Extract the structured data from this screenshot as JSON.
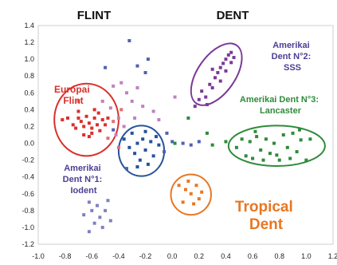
{
  "chart_data": {
    "type": "scatter",
    "headers": [
      "FLINT",
      "DENT"
    ],
    "xlim": [
      -1.0,
      1.2
    ],
    "ylim": [
      -1.2,
      1.4
    ],
    "xticks": [
      "-1.0",
      "-0.8",
      "-0.6",
      "-0.4",
      "-0.2",
      "0.0",
      "0.2",
      "0.4",
      "0.6",
      "0.8",
      "1.0",
      "1.2"
    ],
    "yticks": [
      "1.4",
      "1.2",
      "1.0",
      "0.8",
      "0.6",
      "0.4",
      "0.2",
      "0.0",
      "-0.2",
      "-0.4",
      "-0.6",
      "-0.8",
      "-1.0",
      "-1.2"
    ],
    "groups": [
      {
        "label": [
          "Európai",
          "Flint"
        ],
        "color": "#d9302b",
        "ellipse": {
          "cx": -0.64,
          "cy": 0.28,
          "rx": 0.24,
          "ry": 0.43
        },
        "points": [
          [
            -0.82,
            0.28
          ],
          [
            -0.78,
            0.3
          ],
          [
            -0.74,
            0.22
          ],
          [
            -0.72,
            0.18
          ],
          [
            -0.7,
            0.3
          ],
          [
            -0.68,
            0.26
          ],
          [
            -0.66,
            0.2
          ],
          [
            -0.64,
            0.32
          ],
          [
            -0.62,
            0.24
          ],
          [
            -0.6,
            0.18
          ],
          [
            -0.58,
            0.3
          ],
          [
            -0.56,
            0.22
          ],
          [
            -0.54,
            0.15
          ],
          [
            -0.52,
            0.28
          ],
          [
            -0.66,
            0.1
          ],
          [
            -0.62,
            0.08
          ],
          [
            -0.58,
            0.4
          ],
          [
            -0.55,
            0.36
          ],
          [
            -0.7,
            0.38
          ],
          [
            -0.5,
            0.22
          ],
          [
            -0.48,
            0.3
          ],
          [
            -0.6,
            0.12
          ]
        ]
      },
      {
        "label": [
          "Amerikai",
          "Dent N°2:",
          "SSS"
        ],
        "color": "#7b3a96",
        "ellipse": {
          "cx": 0.33,
          "cy": 0.82,
          "rx": 0.14,
          "ry": 0.42,
          "angle": 35
        },
        "points": [
          [
            0.17,
            0.44
          ],
          [
            0.2,
            0.52
          ],
          [
            0.22,
            0.62
          ],
          [
            0.25,
            0.55
          ],
          [
            0.28,
            0.7
          ],
          [
            0.3,
            0.66
          ],
          [
            0.32,
            0.78
          ],
          [
            0.34,
            0.84
          ],
          [
            0.36,
            0.9
          ],
          [
            0.38,
            0.95
          ],
          [
            0.4,
            1.0
          ],
          [
            0.42,
            1.05
          ],
          [
            0.44,
            1.08
          ],
          [
            0.46,
            1.02
          ],
          [
            0.36,
            0.74
          ],
          [
            0.3,
            0.88
          ],
          [
            0.44,
            0.96
          ],
          [
            0.26,
            0.46
          ],
          [
            0.4,
            0.86
          ]
        ]
      },
      {
        "label": [
          "Amerikai Dent N°3:",
          "Lancaster"
        ],
        "color": "#2e8b3a",
        "ellipse": {
          "cx": 0.78,
          "cy": -0.03,
          "rx": 0.36,
          "ry": 0.24
        },
        "points": [
          [
            0.48,
            -0.05
          ],
          [
            0.52,
            0.05
          ],
          [
            0.55,
            -0.15
          ],
          [
            0.58,
            0.02
          ],
          [
            0.6,
            -0.18
          ],
          [
            0.63,
            0.08
          ],
          [
            0.66,
            -0.08
          ],
          [
            0.7,
            0.05
          ],
          [
            0.73,
            -0.12
          ],
          [
            0.76,
            0.0
          ],
          [
            0.8,
            -0.2
          ],
          [
            0.83,
            0.1
          ],
          [
            0.86,
            -0.05
          ],
          [
            0.9,
            0.12
          ],
          [
            0.93,
            -0.1
          ],
          [
            0.96,
            0.04
          ],
          [
            1.0,
            -0.2
          ],
          [
            1.03,
            0.05
          ],
          [
            0.68,
            -0.2
          ],
          [
            0.78,
            -0.14
          ],
          [
            0.88,
            -0.18
          ],
          [
            0.62,
            0.14
          ],
          [
            0.95,
            0.16
          ]
        ]
      },
      {
        "label": [
          "Amerikai",
          "Dent N°1:",
          "Iodent"
        ],
        "color": "#27529b",
        "ellipse": {
          "cx": -0.23,
          "cy": -0.09,
          "rx": 0.17,
          "ry": 0.3
        },
        "points": [
          [
            -0.36,
            0.05
          ],
          [
            -0.32,
            -0.05
          ],
          [
            -0.3,
            0.12
          ],
          [
            -0.28,
            -0.12
          ],
          [
            -0.26,
            0.0
          ],
          [
            -0.24,
            -0.2
          ],
          [
            -0.22,
            0.05
          ],
          [
            -0.2,
            -0.08
          ],
          [
            -0.18,
            -0.25
          ],
          [
            -0.16,
            0.02
          ],
          [
            -0.14,
            -0.15
          ],
          [
            -0.12,
            0.08
          ],
          [
            -0.1,
            -0.02
          ],
          [
            -0.26,
            -0.28
          ],
          [
            -0.2,
            0.14
          ]
        ]
      },
      {
        "label": [
          "Tropical",
          "Dent"
        ],
        "color": "#e87722",
        "ellipse": {
          "cx": 0.14,
          "cy": -0.61,
          "rx": 0.15,
          "ry": 0.24
        },
        "points": [
          [
            0.05,
            -0.5
          ],
          [
            0.1,
            -0.55
          ],
          [
            0.14,
            -0.6
          ],
          [
            0.18,
            -0.5
          ],
          [
            0.22,
            -0.58
          ],
          [
            0.08,
            -0.7
          ],
          [
            0.16,
            -0.72
          ],
          [
            0.12,
            -0.45
          ],
          [
            0.2,
            -0.66
          ]
        ]
      }
    ],
    "unlabeled_points": [
      {
        "color": "#8080c0",
        "points": [
          [
            -0.62,
            -0.7
          ],
          [
            -0.6,
            -0.8
          ],
          [
            -0.56,
            -0.74
          ],
          [
            -0.54,
            -0.88
          ],
          [
            -0.5,
            -0.8
          ],
          [
            -0.48,
            -0.68
          ],
          [
            -0.58,
            -0.95
          ],
          [
            -0.52,
            -1.0
          ],
          [
            -0.66,
            -0.85
          ],
          [
            -0.46,
            -0.92
          ],
          [
            -0.62,
            -1.05
          ]
        ]
      },
      {
        "color": "#c080c0",
        "points": [
          [
            -0.44,
            0.68
          ],
          [
            -0.38,
            0.72
          ],
          [
            -0.34,
            0.6
          ],
          [
            -0.3,
            0.5
          ],
          [
            -0.26,
            0.66
          ],
          [
            -0.22,
            0.44
          ],
          [
            -0.4,
            0.3
          ],
          [
            -0.36,
            0.2
          ],
          [
            -0.42,
            0.1
          ],
          [
            -0.46,
            0.42
          ],
          [
            -0.28,
            0.3
          ],
          [
            -0.52,
            0.5
          ],
          [
            0.02,
            0.55
          ],
          [
            -0.14,
            0.38
          ],
          [
            -0.1,
            0.28
          ]
        ]
      },
      {
        "color": "#5060b0",
        "points": [
          [
            -0.32,
            1.22
          ],
          [
            -0.26,
            0.92
          ],
          [
            -0.2,
            0.84
          ],
          [
            -0.18,
            1.0
          ],
          [
            -0.5,
            0.9
          ],
          [
            -0.44,
            0.16
          ],
          [
            -0.34,
            -0.3
          ],
          [
            -0.06,
            -0.1
          ],
          [
            0.0,
            0.02
          ],
          [
            0.08,
            0.0
          ],
          [
            0.14,
            -0.02
          ],
          [
            0.2,
            0.02
          ],
          [
            -0.04,
            0.12
          ]
        ]
      },
      {
        "color": "#e07070",
        "points": [
          [
            -0.7,
            0.5
          ],
          [
            -0.48,
            0.06
          ],
          [
            -0.44,
            0.26
          ],
          [
            -0.4,
            -0.05
          ],
          [
            -0.38,
            0.4
          ]
        ]
      },
      {
        "color": "#2e8b3a",
        "points": [
          [
            0.02,
            0.0
          ],
          [
            0.3,
            -0.02
          ],
          [
            0.4,
            0.02
          ],
          [
            0.12,
            0.3
          ],
          [
            0.26,
            0.12
          ]
        ]
      }
    ]
  }
}
